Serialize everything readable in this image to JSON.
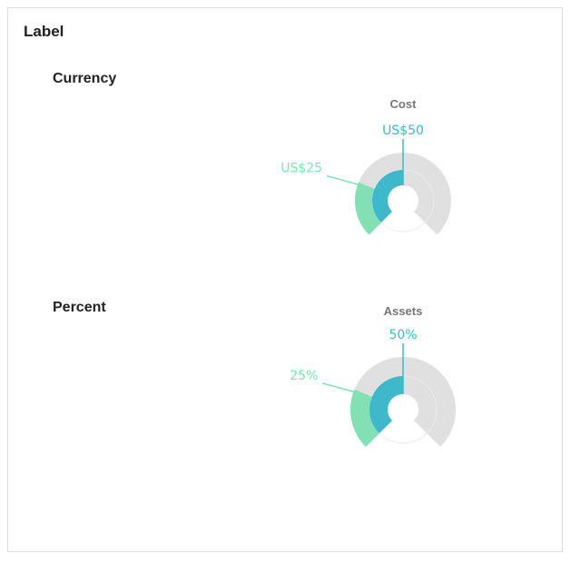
{
  "panel": {
    "title": "Label"
  },
  "colors": {
    "track": "#e0e0e0",
    "inner_series": "#3fb8cc",
    "outer_series": "#82e0b4"
  },
  "chart_data": [
    {
      "type": "radialBar",
      "section_title": "Currency",
      "title": "Cost",
      "start_angle_deg": -135,
      "end_angle_deg": 135,
      "series": [
        {
          "label": "US$25",
          "value": 25,
          "ring": "outer"
        },
        {
          "label": "US$50",
          "value": 50,
          "ring": "inner"
        }
      ],
      "max": 100
    },
    {
      "type": "radialBar",
      "section_title": "Percent",
      "title": "Assets",
      "start_angle_deg": -135,
      "end_angle_deg": 135,
      "series": [
        {
          "label": "25%",
          "value": 25,
          "ring": "outer"
        },
        {
          "label": "50%",
          "value": 50,
          "ring": "inner"
        }
      ],
      "max": 100
    }
  ]
}
